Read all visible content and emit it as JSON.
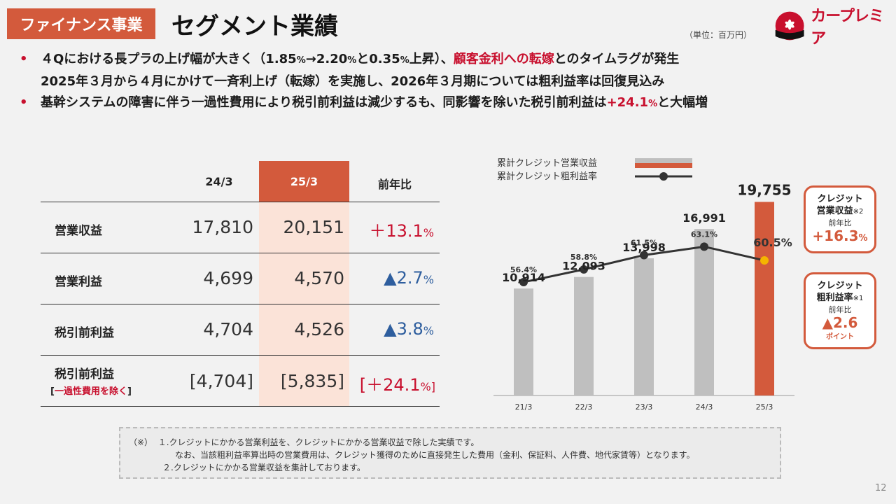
{
  "header": {
    "segment": "ファイナンス事業",
    "title": "セグメント業績",
    "unit": "（単位：百万円）",
    "logo_text": "カープレミア"
  },
  "bullets": {
    "b1_a": "４Qにおける長プラの上げ幅が大きく（1.85",
    "b1_p1": "%",
    "b1_b": "→2.20",
    "b1_p2": "%",
    "b1_c": "と0.35",
    "b1_p3": "%",
    "b1_d": "上昇）、",
    "b1_red": "顧客金利への転嫁",
    "b1_e": "とのタイムラグが発生",
    "b2": "2025年３月から４月にかけて一斉利上げ（転嫁）を実施し、2026年３月期については粗利益率は回復見込み",
    "b3_a": "基幹システムの障害に伴う一過性費用により税引前利益は減少するも、同影響を除いた税引前利益は",
    "b3_red": "+24.1",
    "b3_pct": "%",
    "b3_b": "と大幅増",
    "marker": "•"
  },
  "table": {
    "headers": [
      "24/3",
      "25/3",
      "前年比"
    ],
    "rows": [
      {
        "label": "営業収益",
        "sub": "",
        "v1": "17,810",
        "v2": "20,151",
        "chg": "＋13.1",
        "unit": "%",
        "dir": "pos"
      },
      {
        "label": "営業利益",
        "sub": "",
        "v1": "4,699",
        "v2": "4,570",
        "chg": "▲2.7",
        "unit": "%",
        "dir": "neg"
      },
      {
        "label": "税引前利益",
        "sub": "",
        "v1": "4,704",
        "v2": "4,526",
        "chg": "▲3.8",
        "unit": "%",
        "dir": "neg"
      },
      {
        "label": "税引前利益",
        "sub_open": "[",
        "sub": "一過性費用を除く",
        "sub_close": "]",
        "v1": "[4,704]",
        "v2": "[5,835]",
        "chg": "[＋24.1",
        "unit": "%]",
        "dir": "pos"
      }
    ]
  },
  "chart_data": {
    "type": "bar",
    "categories": [
      "21/3",
      "22/3",
      "23/3",
      "24/3",
      "25/3"
    ],
    "series": [
      {
        "name": "累計クレジット営業収益",
        "values": [
          10914,
          12093,
          13998,
          16991,
          19755
        ],
        "labels": [
          "10,914",
          "12,093",
          "13,998",
          "16,991",
          "19,755"
        ]
      },
      {
        "name": "累計クレジット粗利益率",
        "values": [
          56.4,
          58.8,
          61.5,
          63.1,
          60.5
        ],
        "labels": [
          "56.4%",
          "58.8%",
          "61.5%",
          "63.1%",
          "60.5%"
        ]
      }
    ],
    "ylim": [
      0,
      20000
    ],
    "y2lim": [
      35,
      72
    ],
    "colors": {
      "bar": "#bfbfbf",
      "bar_highlight": "#d35a3c",
      "line": "#333333",
      "point_highlight": "#f5b400"
    }
  },
  "callouts": {
    "revenue": {
      "title": "クレジット",
      "title2": "営業収益",
      "note": "※2",
      "sub": "前年比",
      "value": "+16.3",
      "unit": "%"
    },
    "margin": {
      "title": "クレジット",
      "title2": "粗利益率",
      "note": "※1",
      "sub": "前年比",
      "value": "▲2.6",
      "unit_label": "ポイント"
    }
  },
  "notes": {
    "mark": "（※）",
    "n1": "１.クレジットにかかる営業利益を、クレジットにかかる営業収益で除した実績です。",
    "n1b": "なお、当該粗利益率算出時の営業費用は、クレジット獲得のために直接発生した費用（金利、保証料、人件費、地代家賃等）となります。",
    "n2": "２.クレジットにかかる営業収益を集計しております。"
  },
  "page_number": "12",
  "colors": {
    "accent": "#d35a3c",
    "brand_red": "#c8102e",
    "neg_blue": "#2e5e9e"
  }
}
